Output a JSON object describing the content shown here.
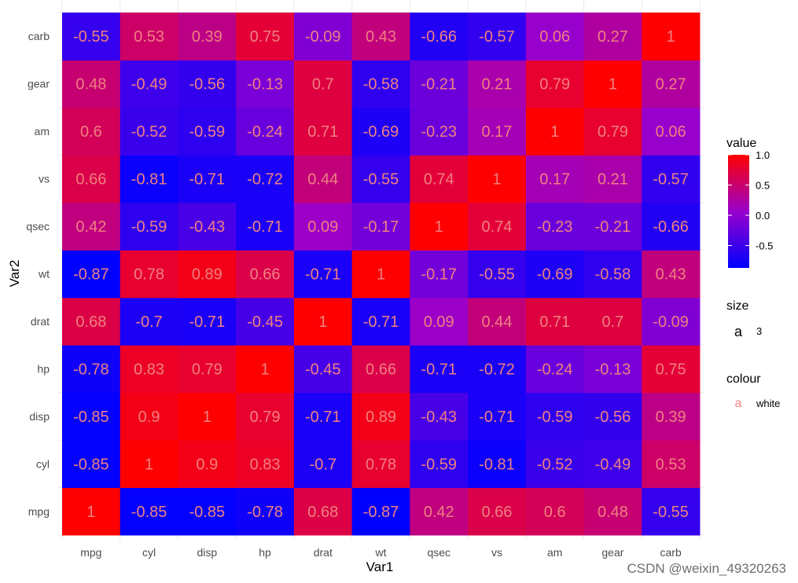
{
  "chart_data": {
    "type": "heatmap",
    "x": [
      "mpg",
      "cyl",
      "disp",
      "hp",
      "drat",
      "wt",
      "qsec",
      "vs",
      "am",
      "gear",
      "carb"
    ],
    "y": [
      "mpg",
      "cyl",
      "disp",
      "hp",
      "drat",
      "wt",
      "qsec",
      "vs",
      "am",
      "gear",
      "carb"
    ],
    "values": [
      [
        1,
        -0.85,
        -0.85,
        -0.78,
        0.68,
        -0.87,
        0.42,
        0.66,
        0.6,
        0.48,
        -0.55
      ],
      [
        -0.85,
        1,
        0.9,
        0.83,
        -0.7,
        0.78,
        -0.59,
        -0.81,
        -0.52,
        -0.49,
        0.53
      ],
      [
        -0.85,
        0.9,
        1,
        0.79,
        -0.71,
        0.89,
        -0.43,
        -0.71,
        -0.59,
        -0.56,
        0.39
      ],
      [
        -0.78,
        0.83,
        0.79,
        1,
        -0.45,
        0.66,
        -0.71,
        -0.72,
        -0.24,
        -0.13,
        0.75
      ],
      [
        0.68,
        -0.7,
        -0.71,
        -0.45,
        1,
        -0.71,
        0.09,
        0.44,
        0.71,
        0.7,
        -0.09
      ],
      [
        -0.87,
        0.78,
        0.89,
        0.66,
        -0.71,
        1,
        -0.17,
        -0.55,
        -0.69,
        -0.58,
        0.43
      ],
      [
        0.42,
        -0.59,
        -0.43,
        -0.71,
        0.09,
        -0.17,
        1,
        0.74,
        -0.23,
        -0.21,
        -0.66
      ],
      [
        0.66,
        -0.81,
        -0.71,
        -0.72,
        0.44,
        -0.55,
        0.74,
        1,
        0.17,
        0.21,
        -0.57
      ],
      [
        0.6,
        -0.52,
        -0.59,
        -0.24,
        0.71,
        -0.69,
        -0.23,
        0.17,
        1,
        0.79,
        0.06
      ],
      [
        0.48,
        -0.49,
        -0.56,
        -0.13,
        0.7,
        -0.58,
        -0.21,
        0.21,
        0.79,
        1,
        0.27
      ],
      [
        -0.55,
        0.53,
        0.39,
        0.75,
        -0.09,
        0.43,
        -0.66,
        -0.57,
        0.06,
        0.27,
        1
      ]
    ],
    "value_labels": [
      [
        "1",
        "-0.85",
        "-0.85",
        "-0.78",
        "0.68",
        "-0.87",
        "0.42",
        "0.66",
        "0.6",
        "0.48",
        "-0.55"
      ],
      [
        "-0.85",
        "1",
        "0.9",
        "0.83",
        "-0.7",
        "0.78",
        "-0.59",
        "-0.81",
        "-0.52",
        "-0.49",
        "0.53"
      ],
      [
        "-0.85",
        "0.9",
        "1",
        "0.79",
        "-0.71",
        "0.89",
        "-0.43",
        "-0.71",
        "-0.59",
        "-0.56",
        "0.39"
      ],
      [
        "-0.78",
        "0.83",
        "0.79",
        "1",
        "-0.45",
        "0.66",
        "-0.71",
        "-0.72",
        "-0.24",
        "-0.13",
        "0.75"
      ],
      [
        "0.68",
        "-0.7",
        "-0.71",
        "-0.45",
        "1",
        "-0.71",
        "0.09",
        "0.44",
        "0.71",
        "0.7",
        "-0.09"
      ],
      [
        "-0.87",
        "0.78",
        "0.89",
        "0.66",
        "-0.71",
        "1",
        "-0.17",
        "-0.55",
        "-0.69",
        "-0.58",
        "0.43"
      ],
      [
        "0.42",
        "-0.59",
        "-0.43",
        "-0.71",
        "0.09",
        "-0.17",
        "1",
        "0.74",
        "-0.23",
        "-0.21",
        "-0.66"
      ],
      [
        "0.66",
        "-0.81",
        "-0.71",
        "-0.72",
        "0.44",
        "-0.55",
        "0.74",
        "1",
        "0.17",
        "0.21",
        "-0.57"
      ],
      [
        "0.6",
        "-0.52",
        "-0.59",
        "-0.24",
        "0.71",
        "-0.69",
        "-0.23",
        "0.17",
        "1",
        "0.79",
        "0.06"
      ],
      [
        "0.48",
        "-0.49",
        "-0.56",
        "-0.13",
        "0.7",
        "-0.58",
        "-0.21",
        "0.21",
        "0.79",
        "1",
        "0.27"
      ],
      [
        "-0.55",
        "0.53",
        "0.39",
        "0.75",
        "-0.09",
        "0.43",
        "-0.66",
        "-0.57",
        "0.06",
        "0.27",
        "1"
      ]
    ],
    "xlabel": "Var1",
    "ylabel": "Var2",
    "color_scale": {
      "low": "#0000ff",
      "mid": "#9900cc",
      "high": "#ff0000",
      "min": -0.87,
      "max": 1
    },
    "label_color": "#f08080",
    "legend": {
      "placement": "right",
      "value_title": "value",
      "value_ticks": [
        "1.0",
        "0.5",
        "0.0",
        "-0.5"
      ],
      "value_tick_values": [
        1.0,
        0.5,
        0.0,
        -0.5
      ],
      "size_title": "size",
      "size_key": "a",
      "size_value": "3",
      "colour_title": "colour",
      "colour_key": "a",
      "colour_value": "white"
    },
    "grid": true
  },
  "watermark": "CSDN @weixin_49320263"
}
